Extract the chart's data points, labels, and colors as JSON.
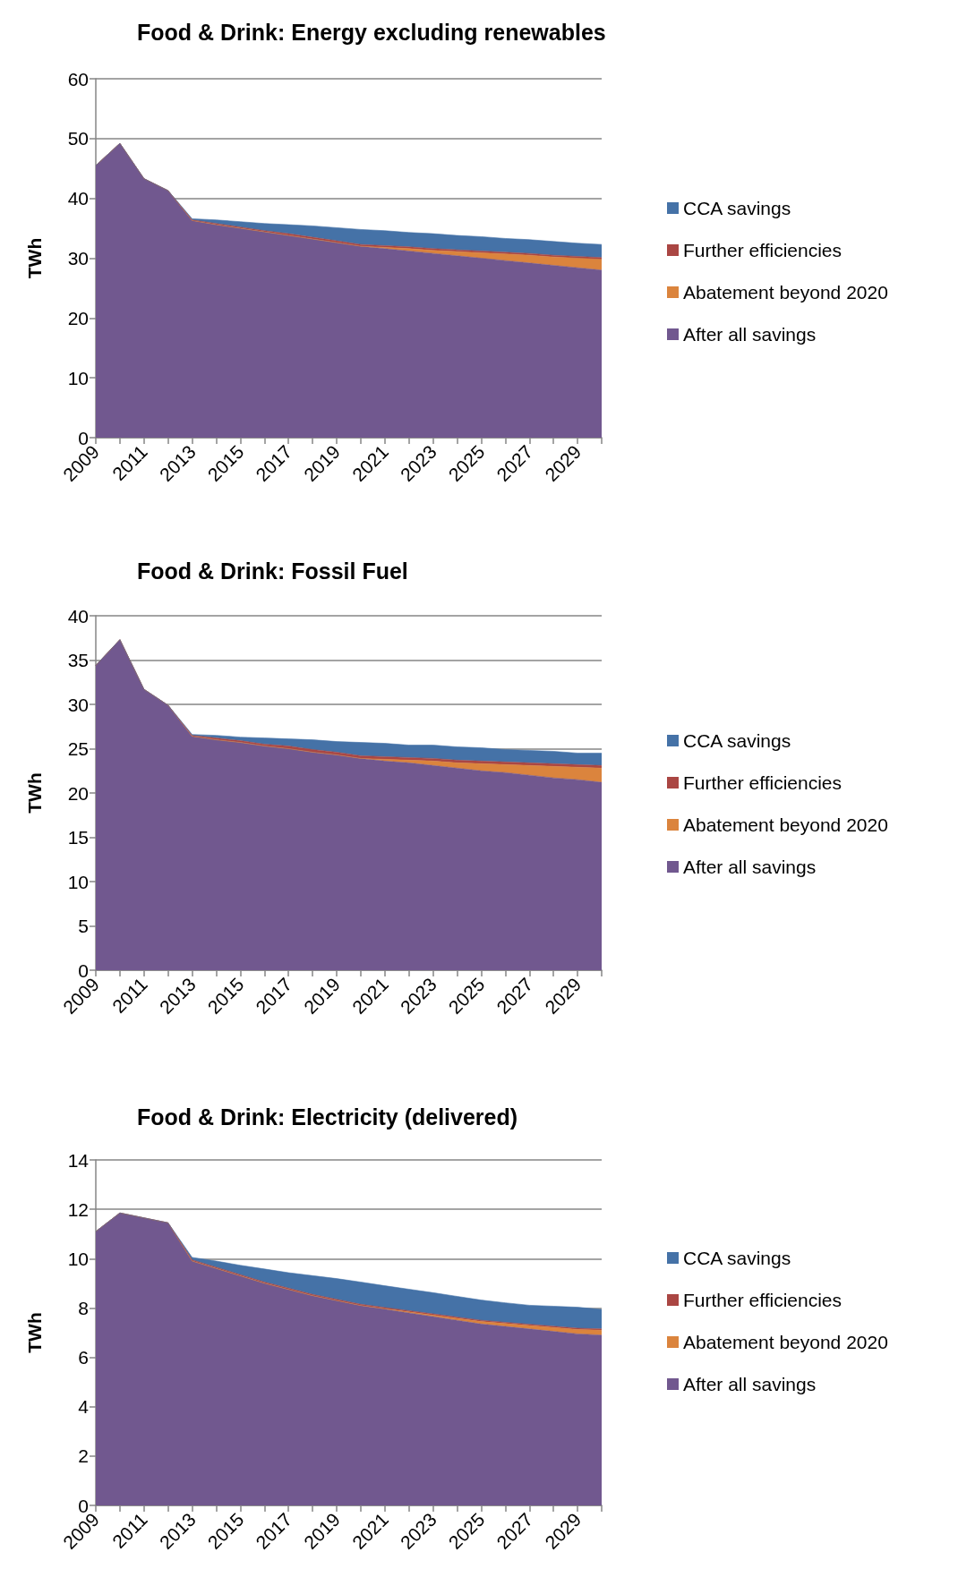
{
  "chart_data": [
    {
      "type": "area",
      "title": "Food & Drink: Energy excluding renewables",
      "ylabel": "TWh",
      "stacked": true,
      "grid": "y",
      "legend": "right",
      "ylim": [
        0,
        60
      ],
      "yticks": [
        0,
        10,
        20,
        30,
        40,
        50,
        60
      ],
      "categories": [
        "2009",
        null,
        "2011",
        null,
        "2013",
        null,
        "2015",
        null,
        "2017",
        null,
        "2019",
        null,
        "2021",
        null,
        "2023",
        null,
        "2025",
        null,
        "2027",
        null,
        "2029",
        null
      ],
      "series": [
        {
          "name": "After all savings",
          "color": "#71588f",
          "values": [
            45.5,
            49.2,
            43.3,
            41.3,
            36.3,
            35.6,
            35.0,
            34.4,
            33.8,
            33.2,
            32.6,
            32.0,
            31.6,
            31.2,
            30.8,
            30.4,
            30.0,
            29.6,
            29.2,
            28.8,
            28.4,
            28.0
          ]
        },
        {
          "name": "Abatement beyond 2020",
          "color": "#db843d",
          "values": [
            0,
            0,
            0,
            0,
            0,
            0,
            0,
            0,
            0,
            0,
            0,
            0,
            0.2,
            0.4,
            0.5,
            0.7,
            0.9,
            1.1,
            1.3,
            1.4,
            1.6,
            1.8
          ]
        },
        {
          "name": "Further efficiencies",
          "color": "#aa4643",
          "values": [
            0,
            0,
            0,
            0,
            0.1,
            0.2,
            0.2,
            0.2,
            0.3,
            0.3,
            0.3,
            0.3,
            0.3,
            0.3,
            0.3,
            0.3,
            0.3,
            0.3,
            0.3,
            0.3,
            0.3,
            0.3
          ]
        },
        {
          "name": "CCA savings",
          "color": "#4572a7",
          "values": [
            0,
            0,
            0,
            0,
            0.2,
            0.6,
            0.9,
            1.2,
            1.5,
            1.9,
            2.2,
            2.5,
            2.5,
            2.4,
            2.5,
            2.4,
            2.4,
            2.3,
            2.3,
            2.3,
            2.2,
            2.2
          ]
        }
      ]
    },
    {
      "type": "area",
      "title": "Food & Drink: Fossil Fuel",
      "ylabel": "TWh",
      "stacked": true,
      "grid": "y",
      "legend": "right",
      "ylim": [
        0,
        40
      ],
      "yticks": [
        0,
        5,
        10,
        15,
        20,
        25,
        30,
        35,
        40
      ],
      "categories": [
        "2009",
        null,
        "2011",
        null,
        "2013",
        null,
        "2015",
        null,
        "2017",
        null,
        "2019",
        null,
        "2021",
        null,
        "2023",
        null,
        "2025",
        null,
        "2027",
        null,
        "2029",
        null
      ],
      "series": [
        {
          "name": "After all savings",
          "color": "#71588f",
          "values": [
            34.4,
            37.3,
            31.7,
            29.9,
            26.4,
            26.0,
            25.7,
            25.3,
            25.0,
            24.6,
            24.3,
            23.9,
            23.6,
            23.4,
            23.1,
            22.8,
            22.5,
            22.3,
            22.0,
            21.7,
            21.5,
            21.2
          ]
        },
        {
          "name": "Abatement beyond 2020",
          "color": "#db843d",
          "values": [
            0,
            0,
            0,
            0,
            0,
            0,
            0,
            0,
            0,
            0,
            0,
            0,
            0.2,
            0.3,
            0.5,
            0.6,
            0.8,
            0.9,
            1.1,
            1.3,
            1.4,
            1.6
          ]
        },
        {
          "name": "Further efficiencies",
          "color": "#aa4643",
          "values": [
            0,
            0,
            0,
            0,
            0.1,
            0.2,
            0.2,
            0.2,
            0.3,
            0.3,
            0.3,
            0.3,
            0.3,
            0.3,
            0.3,
            0.3,
            0.3,
            0.3,
            0.3,
            0.3,
            0.3,
            0.3
          ]
        },
        {
          "name": "CCA savings",
          "color": "#4572a7",
          "values": [
            0,
            0,
            0,
            0,
            0.1,
            0.3,
            0.4,
            0.7,
            0.8,
            1.1,
            1.2,
            1.5,
            1.5,
            1.4,
            1.5,
            1.5,
            1.5,
            1.4,
            1.4,
            1.4,
            1.3,
            1.4
          ]
        }
      ]
    },
    {
      "type": "area",
      "title": "Food & Drink: Electricity (delivered)",
      "ylabel": "TWh",
      "stacked": true,
      "grid": "y",
      "legend": "right",
      "ylim": [
        0,
        14
      ],
      "yticks": [
        0,
        2,
        4,
        6,
        8,
        10,
        12,
        14
      ],
      "categories": [
        "2009",
        null,
        "2011",
        null,
        "2013",
        null,
        "2015",
        null,
        "2017",
        null,
        "2019",
        null,
        "2021",
        null,
        "2023",
        null,
        "2025",
        null,
        "2027",
        null,
        "2029",
        null
      ],
      "series": [
        {
          "name": "After all savings",
          "color": "#71588f",
          "values": [
            11.1,
            11.85,
            11.65,
            11.45,
            9.9,
            9.6,
            9.3,
            9.0,
            8.75,
            8.5,
            8.3,
            8.1,
            7.95,
            7.8,
            7.65,
            7.5,
            7.35,
            7.25,
            7.15,
            7.05,
            6.95,
            6.9
          ]
        },
        {
          "name": "Abatement beyond 2020",
          "color": "#db843d",
          "values": [
            0,
            0,
            0,
            0,
            0,
            0,
            0,
            0,
            0,
            0,
            0,
            0,
            0.02,
            0.04,
            0.06,
            0.08,
            0.1,
            0.12,
            0.14,
            0.16,
            0.18,
            0.2
          ]
        },
        {
          "name": "Further efficiencies",
          "color": "#aa4643",
          "values": [
            0,
            0,
            0,
            0,
            0.05,
            0.05,
            0.05,
            0.05,
            0.05,
            0.05,
            0.05,
            0.05,
            0.05,
            0.05,
            0.05,
            0.05,
            0.05,
            0.05,
            0.05,
            0.05,
            0.05,
            0.05
          ]
        },
        {
          "name": "CCA savings",
          "color": "#4572a7",
          "values": [
            0,
            0,
            0,
            0,
            0.1,
            0.25,
            0.38,
            0.53,
            0.63,
            0.76,
            0.84,
            0.9,
            0.88,
            0.87,
            0.86,
            0.84,
            0.82,
            0.79,
            0.77,
            0.81,
            0.85,
            0.79
          ]
        }
      ]
    }
  ]
}
